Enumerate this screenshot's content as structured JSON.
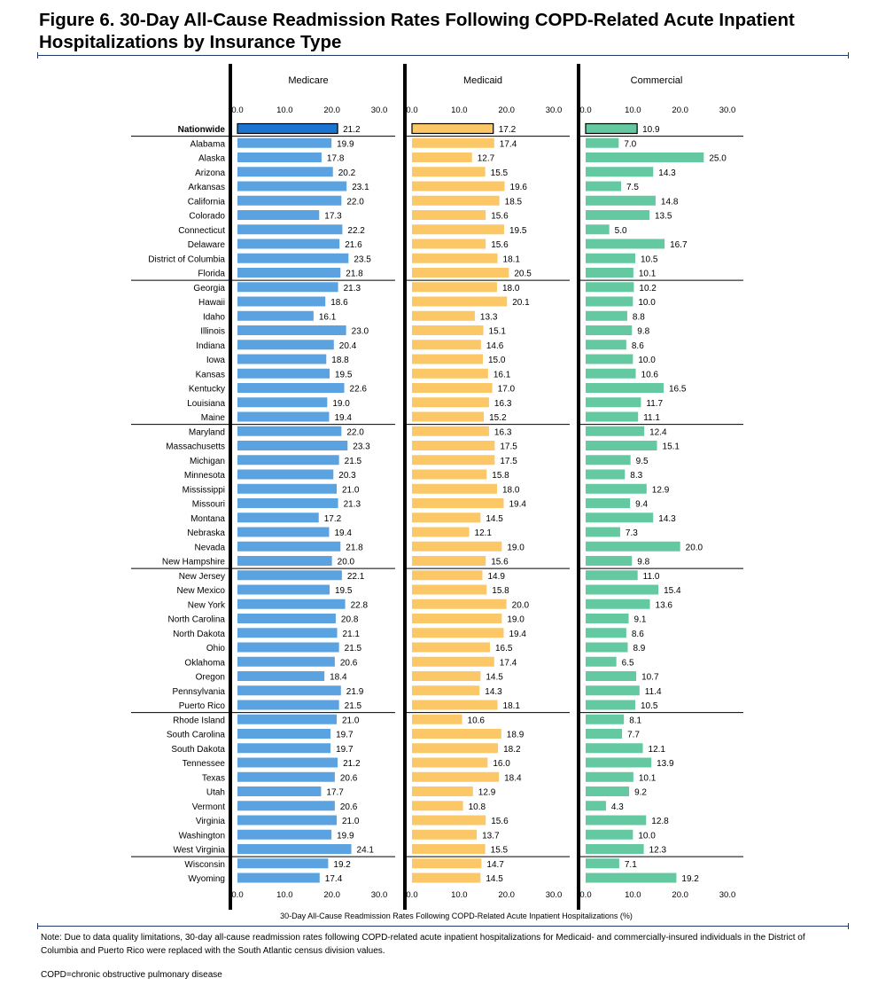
{
  "figure": {
    "title": "Figure 6. 30-Day All-Cause Readmission Rates Following COPD-Related Acute Inpatient Hospitalizations by Insurance Type",
    "note": "Note: Due to data quality limitations, 30-day all-cause readmission rates following COPD-related acute inpatient hospitalizations for Medicaid- and commercially-insured individuals in the District of Columbia and Puerto Rico were replaced with the South Atlantic census division values.",
    "abbreviation": "COPD=chronic obstructive pulmonary disease"
  },
  "chart_data": {
    "type": "bar",
    "orientation": "horizontal",
    "xlabel": "30-Day All-Cause Readmission Rates Following COPD-Related Acute Inpatient Hospitalizations (%)",
    "xlim": [
      0,
      30
    ],
    "ticks": [
      "0.0",
      "10.0",
      "20.0",
      "30.0"
    ],
    "highlight_category": "Nationwide",
    "group_breaks_after": [
      "Nationwide",
      "Florida",
      "Maine",
      "New Hampshire",
      "Puerto Rico",
      "West Virginia"
    ],
    "categories": [
      "Nationwide",
      "Alabama",
      "Alaska",
      "Arizona",
      "Arkansas",
      "California",
      "Colorado",
      "Connecticut",
      "Delaware",
      "District of Columbia",
      "Florida",
      "Georgia",
      "Hawaii",
      "Idaho",
      "Illinois",
      "Indiana",
      "Iowa",
      "Kansas",
      "Kentucky",
      "Louisiana",
      "Maine",
      "Maryland",
      "Massachusetts",
      "Michigan",
      "Minnesota",
      "Mississippi",
      "Missouri",
      "Montana",
      "Nebraska",
      "Nevada",
      "New Hampshire",
      "New Jersey",
      "New Mexico",
      "New York",
      "North Carolina",
      "North Dakota",
      "Ohio",
      "Oklahoma",
      "Oregon",
      "Pennsylvania",
      "Puerto Rico",
      "Rhode Island",
      "South Carolina",
      "South Dakota",
      "Tennessee",
      "Texas",
      "Utah",
      "Vermont",
      "Virginia",
      "Washington",
      "West Virginia",
      "Wisconsin",
      "Wyoming"
    ],
    "series": [
      {
        "name": "Medicare",
        "color": "#5ba3e0",
        "highlight_color": "#1a75d2",
        "values": [
          21.2,
          19.9,
          17.8,
          20.2,
          23.1,
          22.0,
          17.3,
          22.2,
          21.6,
          23.5,
          21.8,
          21.3,
          18.6,
          16.1,
          23.0,
          20.4,
          18.8,
          19.5,
          22.6,
          19.0,
          19.4,
          22.0,
          23.3,
          21.5,
          20.3,
          21.0,
          21.3,
          17.2,
          19.4,
          21.8,
          20.0,
          22.1,
          19.5,
          22.8,
          20.8,
          21.1,
          21.5,
          20.6,
          18.4,
          21.9,
          21.5,
          21.0,
          19.7,
          19.7,
          21.2,
          20.6,
          17.7,
          20.6,
          21.0,
          19.9,
          24.1,
          19.2,
          17.4
        ],
        "labels": [
          "21.2",
          "19.9",
          "17.8",
          "20.2",
          "23.1",
          "22.0",
          "17.3",
          "22.2",
          "21.6",
          "23.5",
          "21.8",
          "21.3",
          "18.6",
          "16.1",
          "23.0",
          "20.4",
          "18.8",
          "19.5",
          "22.6",
          "19.0",
          "19.4",
          "22.0",
          "23.3",
          "21.5",
          "20.3",
          "21.0",
          "21.3",
          "17.2",
          "19.4",
          "21.8",
          "20.0",
          "22.1",
          "19.5",
          "22.8",
          "20.8",
          "21.1",
          "21.5",
          "20.6",
          "18.4",
          "21.9",
          "21.5",
          "21.0",
          "19.7",
          "19.7",
          "21.2",
          "20.6",
          "17.7",
          "20.6",
          "21.0",
          "19.9",
          "24.1",
          "19.2",
          "17.4"
        ]
      },
      {
        "name": "Medicaid",
        "color": "#fcc766",
        "highlight_color": "#fcc766",
        "values": [
          17.2,
          17.4,
          12.7,
          15.5,
          19.6,
          18.5,
          15.6,
          19.5,
          15.6,
          18.1,
          20.5,
          18.0,
          20.1,
          13.3,
          15.1,
          14.6,
          15.0,
          16.1,
          17.0,
          16.3,
          15.2,
          16.3,
          17.5,
          17.5,
          15.8,
          18.0,
          19.4,
          14.5,
          12.1,
          19.0,
          15.6,
          14.9,
          15.8,
          20.0,
          19.0,
          19.4,
          16.5,
          17.4,
          14.5,
          14.3,
          18.1,
          10.6,
          18.9,
          18.2,
          16.0,
          18.4,
          12.9,
          10.8,
          15.6,
          13.7,
          15.5,
          14.7,
          14.5
        ],
        "labels": [
          "17.2",
          "17.4",
          "12.7",
          "15.5",
          "19.6",
          "18.5",
          "15.6",
          "19.5",
          "15.6",
          "18.1",
          "20.5",
          "18.0",
          "20.1",
          "13.3",
          "15.1",
          "14.6",
          "15.0",
          "16.1",
          "17.0",
          "16.3",
          "15.2",
          "16.3",
          "17.5",
          "17.5",
          "15.8",
          "18.0",
          "19.4",
          "14.5",
          "12.1",
          "19.0",
          "15.6",
          "14.9",
          "15.8",
          "20.0",
          "19.0",
          "19.4",
          "16.5",
          "17.4",
          "14.5",
          "14.3",
          "18.1",
          "10.6",
          "18.9",
          "18.2",
          "16.0",
          "18.4",
          "12.9",
          "10.8",
          "15.6",
          "13.7",
          "15.5",
          "14.7",
          "14.5"
        ]
      },
      {
        "name": "Commercial",
        "color": "#64c8a0",
        "highlight_color": "#64c8a0",
        "values": [
          10.9,
          7.0,
          25.0,
          14.3,
          7.5,
          14.8,
          13.5,
          5.0,
          16.7,
          10.5,
          10.1,
          10.2,
          10.0,
          8.8,
          9.8,
          8.6,
          10.0,
          10.6,
          16.5,
          11.7,
          11.1,
          12.4,
          15.1,
          9.5,
          8.3,
          12.9,
          9.4,
          14.3,
          7.3,
          20.0,
          9.8,
          11.0,
          15.4,
          13.6,
          9.1,
          8.6,
          8.9,
          6.5,
          10.7,
          11.4,
          10.5,
          8.1,
          7.7,
          12.1,
          13.9,
          10.1,
          9.2,
          4.3,
          12.8,
          10.0,
          12.3,
          7.1,
          19.2
        ],
        "labels": [
          "10.9",
          "7.0",
          "25.0",
          "14.3",
          "7.5",
          "14.8",
          "13.5",
          "5.0",
          "16.7",
          "10.5",
          "10.1",
          "10.2",
          "10.0",
          "8.8",
          "9.8",
          "8.6",
          "10.0",
          "10.6",
          "16.5",
          "11.7",
          "11.1",
          "12.4",
          "15.1",
          "9.5",
          "8.3",
          "12.9",
          "9.4",
          "14.3",
          "7.3",
          "20.0",
          "9.8",
          "11.0",
          "15.4",
          "13.6",
          "9.1",
          "8.6",
          "8.9",
          "6.5",
          "10.7",
          "11.4",
          "10.5",
          "8.1",
          "7.7",
          "12.1",
          "13.9",
          "10.1",
          "9.2",
          "4.3",
          "12.8",
          "10.0",
          "12.3",
          "7.1",
          "19.2"
        ]
      }
    ]
  }
}
